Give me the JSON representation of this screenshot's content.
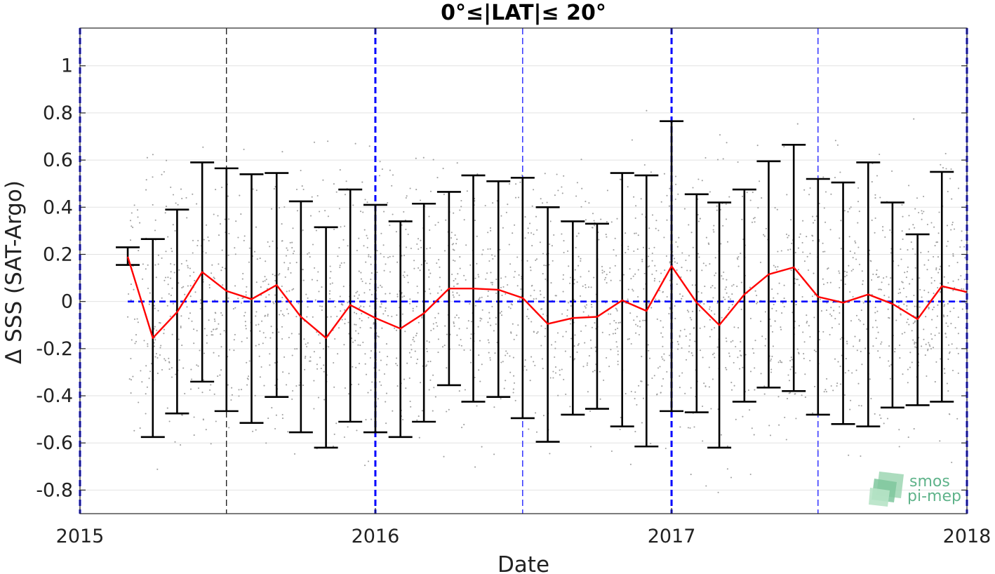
{
  "chart_data": {
    "type": "line",
    "title": "0°≤|LAT|≤ 20°",
    "xlabel": "Date",
    "ylabel": "Δ SSS (SAT-Argo)",
    "xlim": [
      "2015-01-01",
      "2018-01-01"
    ],
    "ylim": [
      -0.9,
      1.16
    ],
    "x_tick_labels": [
      "2015",
      "2016",
      "2017",
      "2018"
    ],
    "y_ticks": [
      -0.8,
      -0.6,
      -0.4,
      -0.2,
      0,
      0.2,
      0.4,
      0.6,
      0.8,
      1
    ],
    "y_tick_labels": [
      "-0.8",
      "-0.6",
      "-0.4",
      "-0.2",
      "0",
      "0.2",
      "0.4",
      "0.6",
      "0.8",
      "1"
    ],
    "grid": true,
    "mean_line_color": "#ff0000",
    "errorbar_color": "#000000",
    "zero_line_color": "#0000ff",
    "scatter_color": "#a0a0a0",
    "series": [
      {
        "dates": [
          "2015-03-01",
          "2015-04-01",
          "2015-05-01",
          "2015-06-01",
          "2015-07-01",
          "2015-08-01",
          "2015-09-01",
          "2015-10-01",
          "2015-11-01",
          "2015-12-01",
          "2016-01-01",
          "2016-02-01",
          "2016-03-01",
          "2016-04-01",
          "2016-05-01",
          "2016-06-01",
          "2016-07-01",
          "2016-08-01",
          "2016-09-01",
          "2016-10-01",
          "2016-11-01",
          "2016-12-01",
          "2017-01-01",
          "2017-02-01",
          "2017-03-01",
          "2017-04-01",
          "2017-05-01",
          "2017-06-01",
          "2017-07-01",
          "2017-08-01",
          "2017-09-01",
          "2017-10-01",
          "2017-11-01",
          "2017-12-01",
          "2018-01-01"
        ],
        "mean": [
          0.19,
          -0.155,
          -0.045,
          0.125,
          0.045,
          0.01,
          0.07,
          -0.065,
          -0.155,
          -0.015,
          -0.07,
          -0.115,
          -0.05,
          0.055,
          0.055,
          0.05,
          0.015,
          -0.095,
          -0.07,
          -0.065,
          0.005,
          -0.04,
          0.15,
          -0.005,
          -0.1,
          0.03,
          0.115,
          0.145,
          0.02,
          -0.005,
          0.03,
          -0.01,
          -0.075,
          0.065,
          0.04
        ],
        "upper": [
          0.23,
          0.265,
          0.39,
          0.59,
          0.565,
          0.54,
          0.545,
          0.425,
          0.315,
          0.475,
          0.41,
          0.34,
          0.415,
          0.465,
          0.535,
          0.51,
          0.525,
          0.4,
          0.34,
          0.33,
          0.545,
          0.535,
          0.765,
          0.455,
          0.42,
          0.475,
          0.595,
          0.665,
          0.52,
          0.505,
          0.59,
          0.42,
          0.285,
          0.55,
          null
        ],
        "lower": [
          0.155,
          -0.575,
          -0.475,
          -0.34,
          -0.465,
          -0.515,
          -0.405,
          -0.555,
          -0.62,
          -0.51,
          -0.555,
          -0.575,
          -0.51,
          -0.355,
          -0.425,
          -0.405,
          -0.495,
          -0.595,
          -0.48,
          -0.455,
          -0.53,
          -0.615,
          -0.465,
          -0.47,
          -0.62,
          -0.425,
          -0.365,
          -0.38,
          -0.48,
          -0.52,
          -0.53,
          -0.45,
          -0.44,
          -0.425,
          null
        ]
      }
    ],
    "zero_line": {
      "from": "2015-03-01",
      "to": "2018-01-01",
      "y": 0
    },
    "vlines_thick": [
      "2015-01-01",
      "2016-01-01",
      "2017-01-01",
      "2018-01-01"
    ],
    "vlines_thin_blue": [
      "2016-07-01",
      "2017-07-01"
    ],
    "vlines_thin_black": [
      "2015-07-01"
    ],
    "annotation": "smos pi-mep"
  }
}
